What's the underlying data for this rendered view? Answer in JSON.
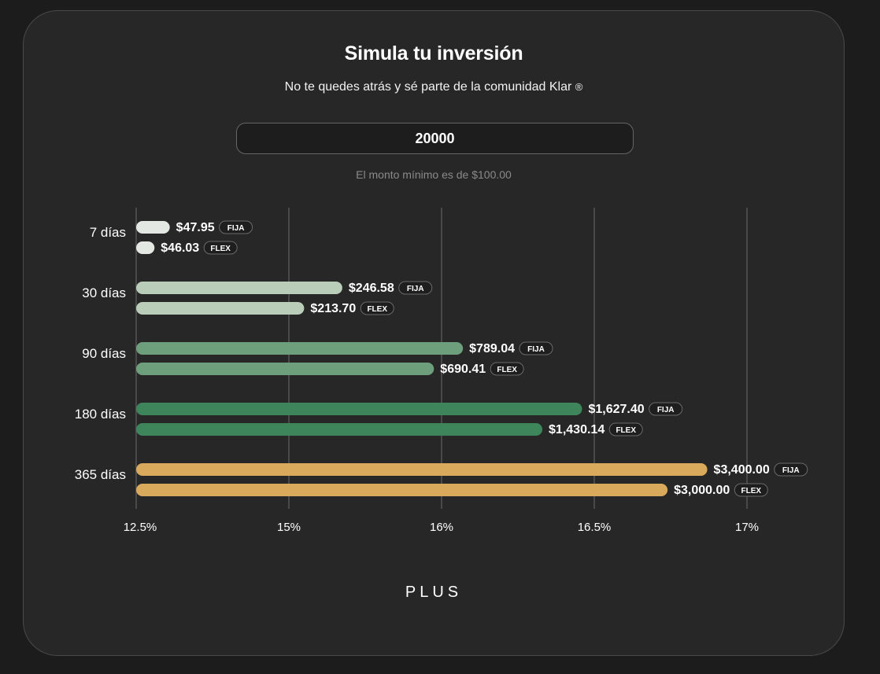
{
  "header": {
    "title": "Simula tu inversión",
    "subtitle": "No te quedes atrás y sé parte de la comunidad Klar",
    "registered_mark": "®"
  },
  "amount_input": {
    "value": "20000"
  },
  "hint": "El monto mínimo es de $100.00",
  "footer": {
    "brand": "PLUS"
  },
  "colors": {
    "background": "#272727",
    "gridline": "#555555",
    "badge_border": "#6a6a6a",
    "badge_bg": "#1e1e1e"
  },
  "chart_data": {
    "type": "bar",
    "orientation": "horizontal",
    "categories": [
      "7 días",
      "30 días",
      "90 días",
      "180 días",
      "365 días"
    ],
    "x_ticks": [
      "12.5%",
      "15%",
      "16%",
      "16.5%",
      "17%"
    ],
    "grid": true,
    "bars": [
      [
        {
          "value": 47.95,
          "label": "$47.95",
          "tag": "FIJA",
          "rate": 13.05
        },
        {
          "value": 46.03,
          "label": "$46.03",
          "tag": "FLEX",
          "rate": 12.8
        }
      ],
      [
        {
          "value": 246.58,
          "label": "$246.58",
          "tag": "FIJA",
          "rate": 15.35
        },
        {
          "value": 213.7,
          "label": "$213.70",
          "tag": "FLEX",
          "rate": 15.1
        }
      ],
      [
        {
          "value": 789.04,
          "label": "$789.04",
          "tag": "FIJA",
          "rate": 16.07
        },
        {
          "value": 690.41,
          "label": "$690.41",
          "tag": "FLEX",
          "rate": 15.95
        }
      ],
      [
        {
          "value": 1627.4,
          "label": "$1,627.40",
          "tag": "FIJA",
          "rate": 16.46
        },
        {
          "value": 1430.14,
          "label": "$1,430.14",
          "tag": "FLEX",
          "rate": 16.33
        }
      ],
      [
        {
          "value": 3400.0,
          "label": "$3,400.00",
          "tag": "FIJA",
          "rate": 16.87
        },
        {
          "value": 3000.0,
          "label": "$3,000.00",
          "tag": "FLEX",
          "rate": 16.74
        }
      ]
    ],
    "series_colors": [
      "#e3e8e3",
      "#b9cdb8",
      "#6e9f7c",
      "#3f855b",
      "#d9aa5c"
    ]
  }
}
